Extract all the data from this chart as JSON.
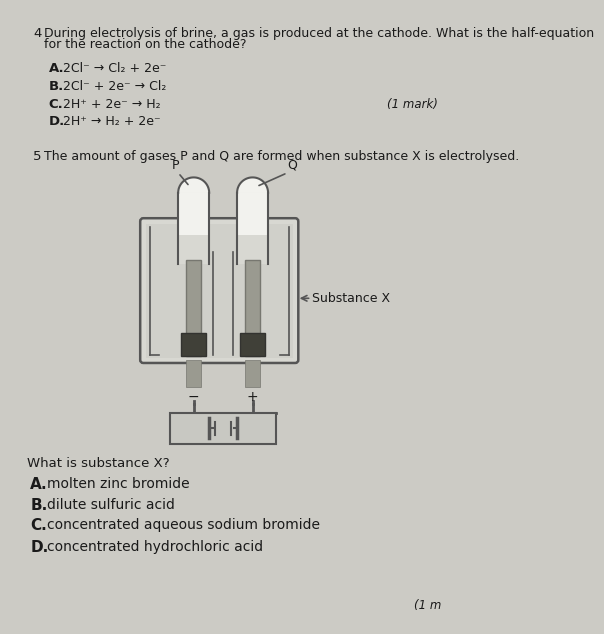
{
  "bg_color": "#cccbc5",
  "q4_number": "4",
  "q4_line1": "During electrolysis of brine, a gas is produced at the cathode. What is the half-equation",
  "q4_line2": "for the reaction on the cathode?",
  "q4_options": [
    {
      "label": "A.",
      "text": "2Cl⁻ → Cl₂ + 2e⁻"
    },
    {
      "label": "B.",
      "text": "2Cl⁻ + 2e⁻ → Cl₂"
    },
    {
      "label": "C.",
      "text": "2H⁺ + 2e⁻ → H₂"
    },
    {
      "label": "D.",
      "text": "2H⁺ → H₂ + 2e⁻"
    }
  ],
  "q4_mark": "(1 mark)",
  "q5_number": "5",
  "q5_text": "The amount of gases P and Q are formed when substance X is electrolysed.",
  "q5_label_P": "P",
  "q5_label_Q": "Q",
  "q5_label_substance": "Substance X",
  "q5_label_minus": "−",
  "q5_label_plus": "+",
  "q5_sub_text": "What is substance X?",
  "q5_options": [
    {
      "label": "A.",
      "text": "molten zinc bromide"
    },
    {
      "label": "B.",
      "text": "dilute sulfuric acid"
    },
    {
      "label": "C.",
      "text": "concentrated aqueous sodium bromide"
    },
    {
      "label": "D.",
      "text": "concentrated hydrochloric acid"
    }
  ],
  "q5_mark": "(1 m",
  "text_color": "#1a1a1a",
  "vessel_fill": "#d8d8d2",
  "vessel_edge": "#555555",
  "tube_fill": "#e8e8e4",
  "electrode_gray": "#9a9a90",
  "electrode_dark": "#404038",
  "wire_color": "#555555",
  "bat_fill": "#c8c8c2"
}
